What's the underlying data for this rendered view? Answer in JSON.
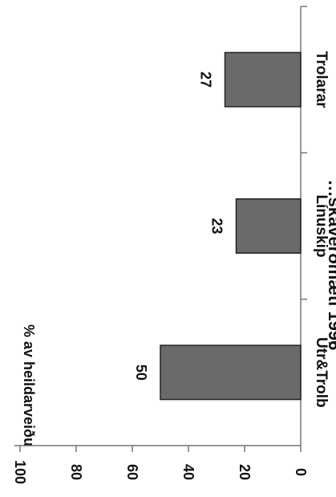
{
  "chart_data": {
    "type": "bar",
    "orientation": "vertical-axis-rotated",
    "title": "…skaverðmæti 1996",
    "categories": [
      "Útr&Trolb",
      "Línuskip",
      "Trolarar"
    ],
    "values": [
      50,
      23,
      27
    ],
    "data_labels": [
      "50",
      "23",
      "27"
    ],
    "ylabel": "% av heildarveiðu",
    "ylim": [
      0,
      100
    ],
    "yticks": [
      "0",
      "20",
      "40",
      "60",
      "80",
      "100"
    ],
    "grid": false,
    "bar_color": "#6a6a6a"
  }
}
